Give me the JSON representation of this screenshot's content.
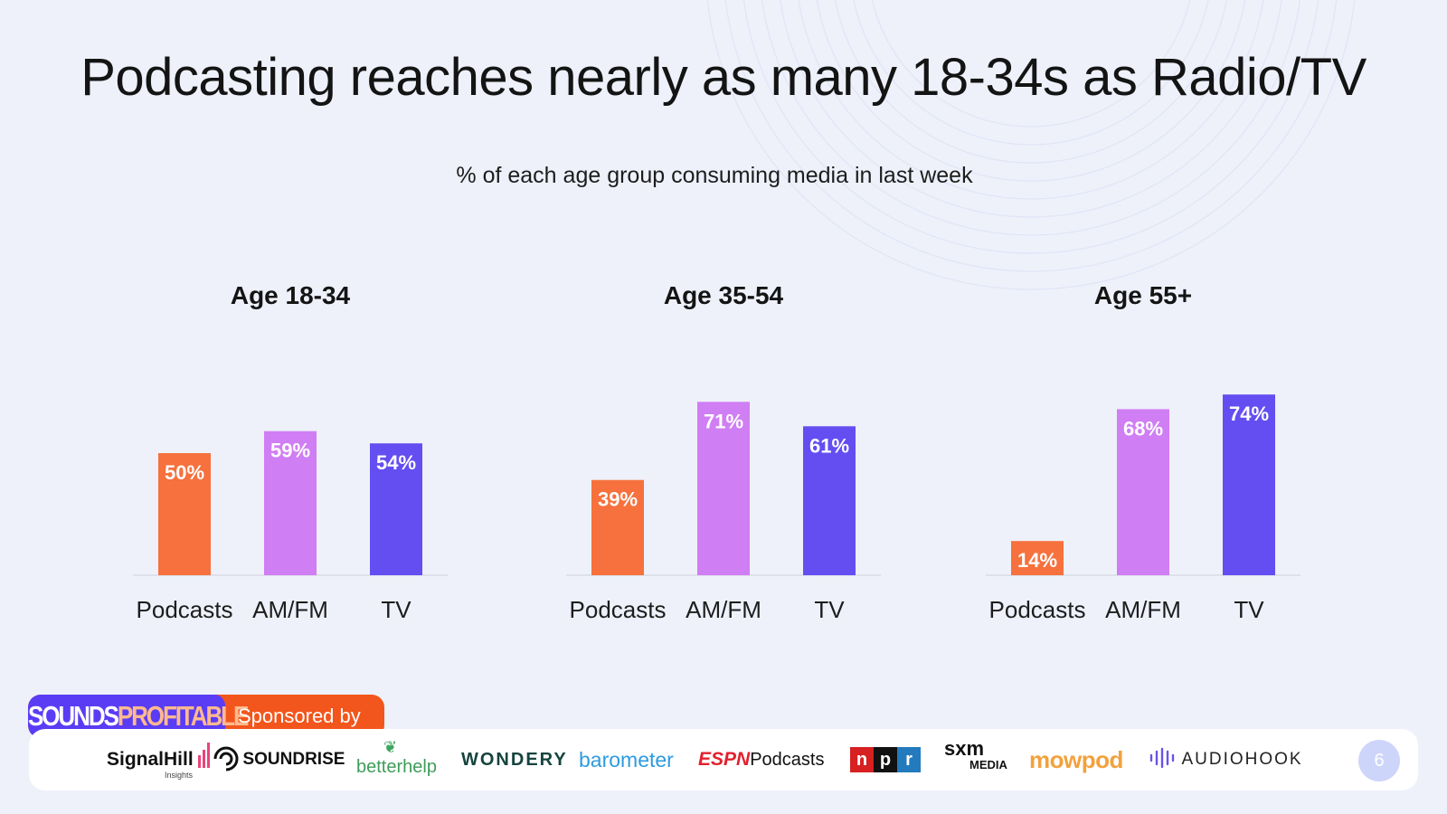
{
  "title": "Podcasting reaches nearly as many 18-34s as Radio/TV",
  "subtitle": "% of each age group consuming media in last week",
  "chart_data": [
    {
      "type": "bar",
      "title": "Age 18-34",
      "categories": [
        "Podcasts",
        "AM/FM",
        "TV"
      ],
      "values": [
        50,
        59,
        54
      ],
      "data_labels": [
        "50%",
        "59%",
        "54%"
      ],
      "colors": [
        "#f6713d",
        "#d07ef3",
        "#644ef1"
      ],
      "ylim": [
        0,
        100
      ],
      "grid": false
    },
    {
      "type": "bar",
      "title": "Age 35-54",
      "categories": [
        "Podcasts",
        "AM/FM",
        "TV"
      ],
      "values": [
        39,
        71,
        61
      ],
      "data_labels": [
        "39%",
        "71%",
        "61%"
      ],
      "colors": [
        "#f6713d",
        "#d07ef3",
        "#644ef1"
      ],
      "ylim": [
        0,
        100
      ],
      "grid": false
    },
    {
      "type": "bar",
      "title": "Age 55+",
      "categories": [
        "Podcasts",
        "AM/FM",
        "TV"
      ],
      "values": [
        14,
        68,
        74
      ],
      "data_labels": [
        "14%",
        "68%",
        "74%"
      ],
      "colors": [
        "#f6713d",
        "#d07ef3",
        "#644ef1"
      ],
      "ylim": [
        0,
        100
      ],
      "grid": false
    }
  ],
  "sponsor": {
    "brand_a": "SOUNDS",
    "brand_b": "PROFITABLE",
    "label": "Sponsored by"
  },
  "logos": {
    "signalhill": "SignalHill",
    "signalhill_sub": "Insights",
    "soundrise": "SOUNDRISE",
    "betterhelp": "betterhelp",
    "wondery": "WONDERY",
    "barometer": "barometer",
    "espn_a": "ESPN",
    "espn_b": "Podcasts",
    "npr": [
      "n",
      "p",
      "r"
    ],
    "sxm_a": "sxm",
    "sxm_b": "MEDIA",
    "mowpod": "mowpod",
    "audiohook": "AUDIOHOOK"
  },
  "page_number": "6"
}
